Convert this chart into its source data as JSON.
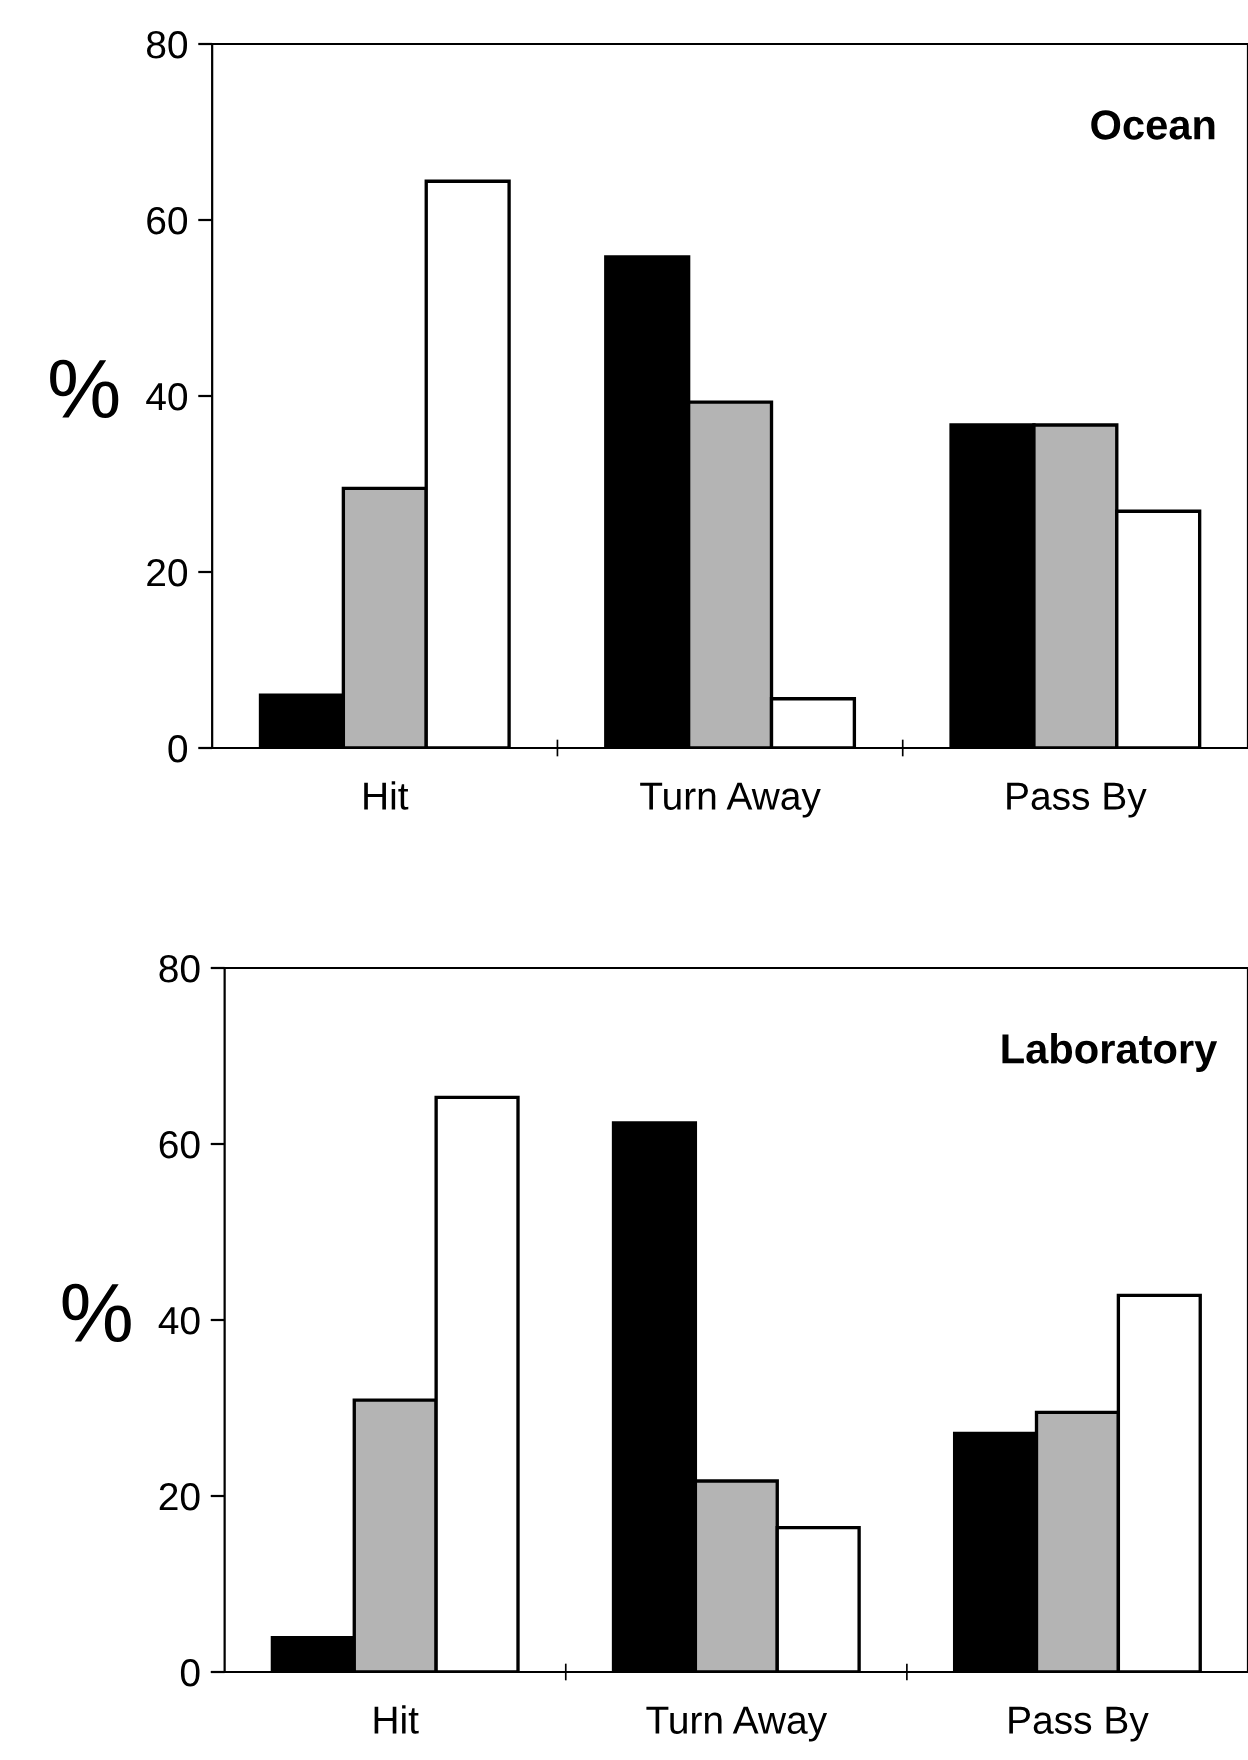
{
  "chart_data": [
    {
      "type": "bar",
      "title": "Ocean",
      "ylabel": "%",
      "categories": [
        "Hit",
        "Turn Away",
        "Pass By"
      ],
      "series": [
        {
          "color": "#000000",
          "values": [
            6.0,
            55.8,
            36.7
          ]
        },
        {
          "color": "#b4b4b4",
          "values": [
            29.5,
            39.3,
            36.7
          ]
        },
        {
          "color": "#ffffff",
          "values": [
            64.4,
            5.6,
            26.9
          ]
        }
      ],
      "ylim": [
        0,
        80
      ],
      "yticks": [
        0,
        20,
        40,
        60,
        80
      ],
      "grid": false,
      "legend": false
    },
    {
      "type": "bar",
      "title": "Laboratory",
      "ylabel": "%",
      "categories": [
        "Hit",
        "Turn Away",
        "Pass By"
      ],
      "series": [
        {
          "color": "#000000",
          "values": [
            3.9,
            62.4,
            27.1
          ]
        },
        {
          "color": "#b4b4b4",
          "values": [
            30.9,
            21.7,
            29.5
          ]
        },
        {
          "color": "#ffffff",
          "values": [
            65.3,
            16.4,
            42.8
          ]
        }
      ],
      "ylim": [
        0,
        80
      ],
      "yticks": [
        0,
        20,
        40,
        60,
        80
      ],
      "grid": false,
      "legend": false
    }
  ]
}
